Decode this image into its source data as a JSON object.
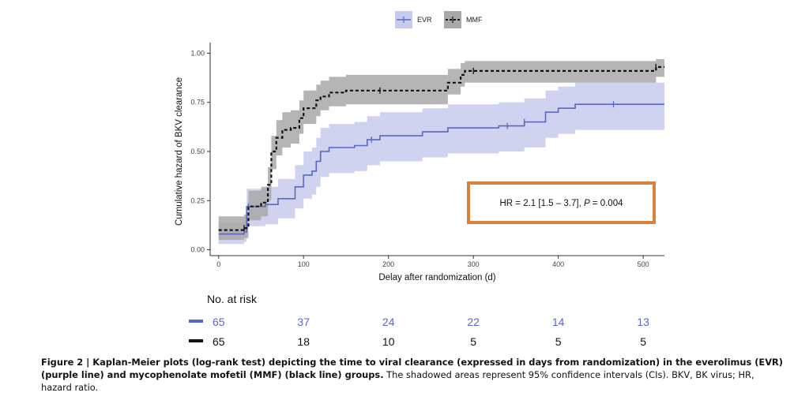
{
  "chart_data": {
    "type": "line",
    "subtype": "kaplan-meier cumulative hazard step curves with confidence bands",
    "xlabel": "Delay after randomization (d)",
    "ylabel": "Cumulative hazard of BKV clearance",
    "xlim": [
      -10,
      525
    ],
    "ylim": [
      -0.03,
      1.03
    ],
    "xticks": [
      0,
      100,
      200,
      300,
      400,
      500
    ],
    "yticks": [
      0.0,
      0.25,
      0.5,
      0.75,
      1.0
    ],
    "ytick_labels": [
      "0.00",
      "0.25",
      "0.50",
      "0.75",
      "1.00"
    ],
    "grid": false,
    "legend_position": "top",
    "series": [
      {
        "name": "EVR",
        "color": "#5a67c4",
        "band_color": "#c7cbec",
        "line_style": "solid",
        "x": [
          0,
          30,
          33,
          55,
          70,
          90,
          100,
          110,
          115,
          120,
          130,
          160,
          175,
          190,
          240,
          270,
          305,
          330,
          360,
          385,
          400,
          420,
          525
        ],
        "y": [
          0.08,
          0.09,
          0.22,
          0.23,
          0.26,
          0.32,
          0.38,
          0.4,
          0.45,
          0.5,
          0.52,
          0.53,
          0.56,
          0.58,
          0.6,
          0.62,
          0.62,
          0.63,
          0.65,
          0.7,
          0.72,
          0.74,
          0.74
        ],
        "lower": [
          0.03,
          0.04,
          0.12,
          0.13,
          0.16,
          0.21,
          0.26,
          0.28,
          0.32,
          0.37,
          0.39,
          0.4,
          0.43,
          0.45,
          0.47,
          0.49,
          0.49,
          0.5,
          0.52,
          0.57,
          0.59,
          0.61,
          0.61
        ],
        "upper": [
          0.14,
          0.15,
          0.31,
          0.32,
          0.36,
          0.43,
          0.5,
          0.52,
          0.57,
          0.62,
          0.64,
          0.65,
          0.68,
          0.7,
          0.72,
          0.74,
          0.74,
          0.75,
          0.77,
          0.81,
          0.83,
          0.85,
          0.85
        ],
        "censor_x": [
          35,
          180,
          340,
          360,
          465
        ]
      },
      {
        "name": "MMF",
        "color": "#111111",
        "band_color": "#a8a8a8",
        "line_style": "dashed",
        "x": [
          0,
          30,
          35,
          50,
          58,
          62,
          68,
          75,
          85,
          95,
          100,
          110,
          115,
          120,
          130,
          150,
          200,
          270,
          285,
          290,
          515,
          525
        ],
        "y": [
          0.1,
          0.11,
          0.22,
          0.24,
          0.33,
          0.5,
          0.57,
          0.61,
          0.62,
          0.67,
          0.72,
          0.72,
          0.76,
          0.78,
          0.8,
          0.81,
          0.81,
          0.85,
          0.89,
          0.91,
          0.93,
          0.93
        ],
        "lower": [
          0.05,
          0.06,
          0.15,
          0.17,
          0.25,
          0.41,
          0.48,
          0.52,
          0.54,
          0.59,
          0.64,
          0.64,
          0.68,
          0.71,
          0.73,
          0.74,
          0.74,
          0.79,
          0.83,
          0.85,
          0.88,
          0.88
        ],
        "upper": [
          0.17,
          0.18,
          0.3,
          0.32,
          0.42,
          0.58,
          0.66,
          0.7,
          0.71,
          0.76,
          0.81,
          0.81,
          0.84,
          0.86,
          0.88,
          0.89,
          0.89,
          0.92,
          0.95,
          0.96,
          0.97,
          0.97
        ],
        "censor_x": [
          30,
          190,
          300,
          515
        ]
      }
    ],
    "annotation": "HR = 2.1 [1.5 – 3.7], P = 0.004",
    "risk_table": {
      "title": "No. at risk",
      "times": [
        0,
        100,
        200,
        300,
        400,
        500
      ],
      "rows": [
        {
          "name": "EVR",
          "color": "#5a67c4",
          "values": [
            65,
            37,
            24,
            22,
            14,
            13
          ]
        },
        {
          "name": "MMF",
          "color": "#111111",
          "values": [
            65,
            18,
            10,
            5,
            5,
            5
          ]
        }
      ]
    }
  },
  "annotation_box": {
    "prefix": "HR = 2.1 [1.5 – 3.7], ",
    "p_label": "P",
    "suffix": " = 0.004",
    "border_color": "#d9803a"
  },
  "caption": {
    "bold": "Figure 2 | Kaplan-Meier plots (log-rank test) depicting the time to viral clearance (expressed in days from randomization) in the everolimus (EVR) (purple line) and mycophenolate mofetil (MMF) (black line) groups.",
    "normal": " The shadowed areas represent 95% confidence intervals (CIs). BKV, BK virus; HR, hazard ratio."
  }
}
